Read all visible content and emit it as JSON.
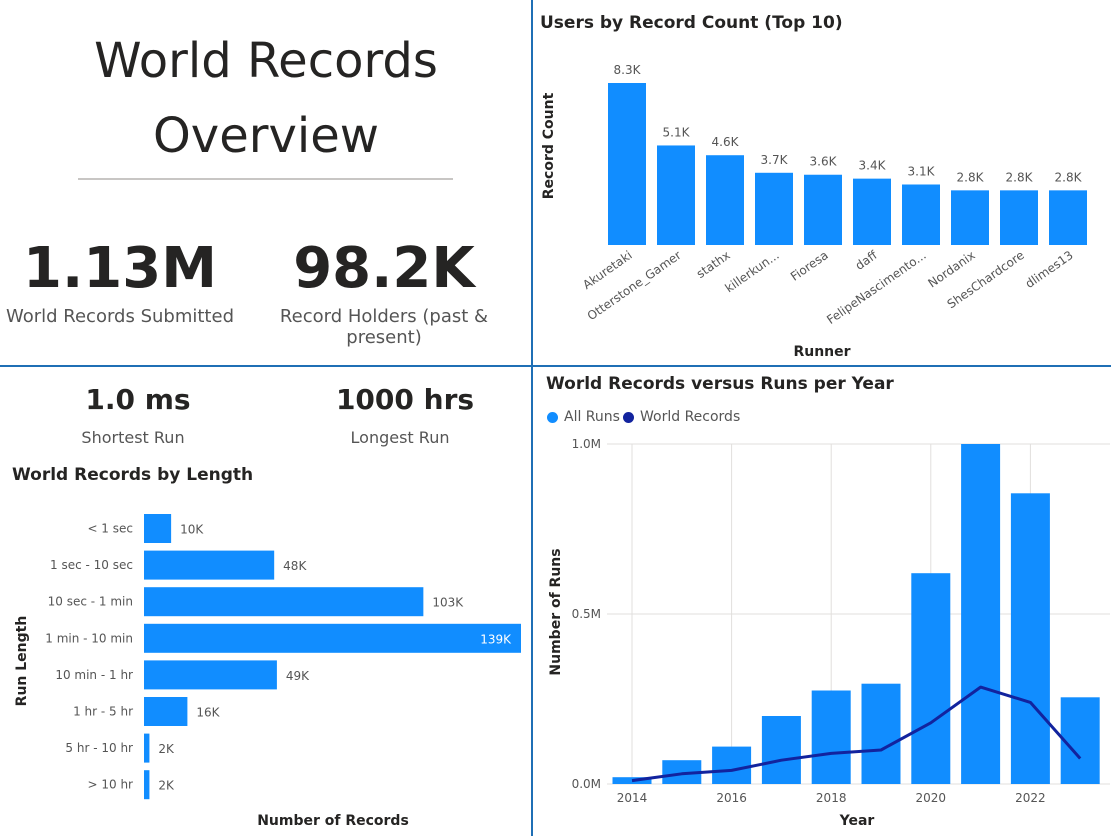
{
  "overview": {
    "title_line1": "World Records",
    "title_line2": "Overview",
    "kpi_submitted_value": "1.13M",
    "kpi_submitted_label": "World Records Submitted",
    "kpi_holders_value": "98.2K",
    "kpi_holders_label": "Record Holders (past & present)"
  },
  "run_stats": {
    "shortest_value": "1.0 ms",
    "shortest_label": "Shortest Run",
    "longest_value": "1000 hrs",
    "longest_label": "Longest Run"
  },
  "colors": {
    "bar": "#118dff",
    "line": "#12239e",
    "divider": "#1f6fb5"
  },
  "chart_data": [
    {
      "id": "users",
      "type": "bar",
      "title": "Users by Record Count (Top 10)",
      "xlabel": "Runner",
      "ylabel": "Record Count",
      "categories": [
        "Akuretaki",
        "Otterstone_Gamer",
        "stathx",
        "killerkun...",
        "Fioresa",
        "daff",
        "FelipeNascimento...",
        "Nordanix",
        "ShesChardcore",
        "dlimes13"
      ],
      "values": [
        8300,
        5100,
        4600,
        3700,
        3600,
        3400,
        3100,
        2800,
        2800,
        2800
      ],
      "data_labels": [
        "8.3K",
        "5.1K",
        "4.6K",
        "3.7K",
        "3.6K",
        "3.4K",
        "3.1K",
        "2.8K",
        "2.8K",
        "2.8K"
      ],
      "ylim": [
        0,
        8300
      ]
    },
    {
      "id": "length",
      "type": "bar",
      "orientation": "horizontal",
      "title": "World Records by Length",
      "xlabel": "Number of Records",
      "ylabel": "Run Length",
      "categories": [
        "< 1 sec",
        "1 sec - 10 sec",
        "10 sec - 1 min",
        "1 min - 10 min",
        "10 min - 1 hr",
        "1 hr - 5 hr",
        "5 hr - 10 hr",
        "> 10 hr"
      ],
      "values": [
        10000,
        48000,
        103000,
        139000,
        49000,
        16000,
        2000,
        2000
      ],
      "data_labels": [
        "10K",
        "48K",
        "103K",
        "139K",
        "49K",
        "16K",
        "2K",
        "2K"
      ],
      "xlim": [
        0,
        139000
      ]
    },
    {
      "id": "yearly",
      "type": "bar+line",
      "title": "World Records versus Runs per Year",
      "xlabel": "Year",
      "ylabel": "Number of Runs",
      "legend": [
        "All Runs",
        "World Records"
      ],
      "legend_position": "top-left",
      "x": [
        2014,
        2015,
        2016,
        2017,
        2018,
        2019,
        2020,
        2021,
        2022,
        2023
      ],
      "series": [
        {
          "name": "All Runs",
          "type": "bar",
          "values": [
            20000,
            70000,
            110000,
            200000,
            275000,
            295000,
            620000,
            1000000,
            855000,
            255000
          ]
        },
        {
          "name": "World Records",
          "type": "line",
          "values": [
            10000,
            30000,
            40000,
            70000,
            90000,
            100000,
            180000,
            285000,
            240000,
            75000
          ]
        }
      ],
      "ylim": [
        0,
        1000000
      ],
      "yticks": [
        "0.0M",
        "0.5M",
        "1.0M"
      ],
      "xticks": [
        "2014",
        "2016",
        "2018",
        "2020",
        "2022"
      ],
      "grid": true
    }
  ]
}
